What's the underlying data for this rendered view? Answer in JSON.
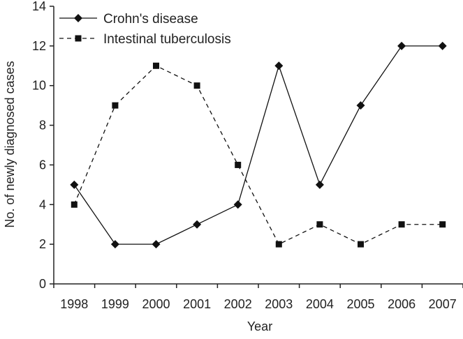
{
  "chart_data": {
    "type": "line",
    "title": "",
    "xlabel": "Year",
    "ylabel": "No. of newly diagnosed cases",
    "categories": [
      "1998",
      "1999",
      "2000",
      "2001",
      "2002",
      "2003",
      "2004",
      "2005",
      "2006",
      "2007"
    ],
    "ylim": [
      0,
      14
    ],
    "yticks": [
      0,
      2,
      4,
      6,
      8,
      10,
      12,
      14
    ],
    "grid": false,
    "legend_position": "top-left",
    "series": [
      {
        "name": "Crohn's disease",
        "marker": "diamond",
        "line_style": "solid",
        "color": "#111111",
        "values": [
          5,
          2,
          2,
          3,
          4,
          11,
          5,
          9,
          12,
          12
        ]
      },
      {
        "name": "Intestinal tuberculosis",
        "marker": "square",
        "line_style": "dashed",
        "color": "#111111",
        "values": [
          4,
          9,
          11,
          10,
          6,
          2,
          3,
          2,
          3,
          3
        ]
      }
    ]
  }
}
